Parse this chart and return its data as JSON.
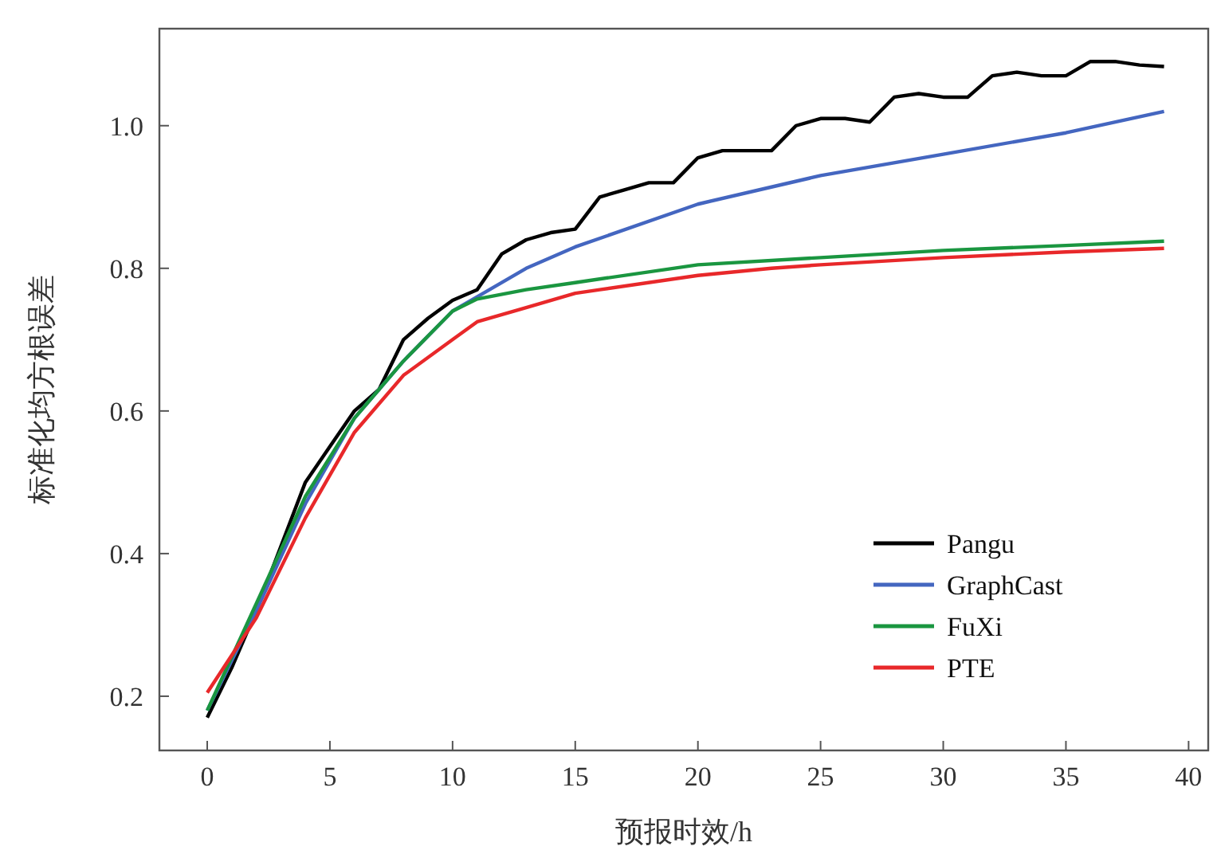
{
  "chart_data": {
    "type": "line",
    "xlabel": "预报时效/h",
    "ylabel": "标准化均方根误差",
    "xlim": [
      -1.95,
      40.8
    ],
    "ylim": [
      0.124,
      1.136
    ],
    "xticks": [
      0,
      5,
      10,
      15,
      20,
      25,
      30,
      35,
      40
    ],
    "yticks": [
      0.2,
      0.4,
      0.6,
      0.8,
      {
        "value": 1,
        "label": "1.0"
      }
    ],
    "legend": "bottom right",
    "grid": false,
    "marker": "none",
    "line_style": "solid",
    "series": [
      {
        "name": "Pangu",
        "color": "#000000",
        "x": [
          0,
          1,
          2,
          3,
          4,
          5,
          6,
          7,
          8,
          9,
          10,
          11,
          12,
          13,
          14,
          15,
          16,
          17,
          18,
          19,
          20,
          21,
          22,
          23,
          24,
          25,
          26,
          27,
          28,
          29,
          30,
          31,
          32,
          33,
          34,
          35,
          36,
          37,
          38,
          39
        ],
        "values": [
          0.17,
          0.24,
          0.32,
          0.41,
          0.5,
          0.55,
          0.6,
          0.63,
          0.7,
          0.73,
          0.755,
          0.77,
          0.82,
          0.84,
          0.85,
          0.855,
          0.9,
          0.91,
          0.92,
          0.92,
          0.955,
          0.965,
          0.965,
          0.965,
          1.0,
          1.01,
          1.01,
          1.005,
          1.04,
          1.045,
          1.04,
          1.04,
          1.07,
          1.075,
          1.07,
          1.07,
          1.09,
          1.09,
          1.085,
          1.083
        ]
      },
      {
        "name": "GraphCast",
        "color": "#4466c0",
        "x": [
          0,
          2,
          4,
          6,
          8,
          10,
          11,
          13,
          15,
          20,
          25,
          30,
          35,
          39
        ],
        "values": [
          0.18,
          0.32,
          0.47,
          0.59,
          0.67,
          0.74,
          0.76,
          0.8,
          0.83,
          0.89,
          0.93,
          0.96,
          0.99,
          1.02
        ]
      },
      {
        "name": "FuXi",
        "color": "#1a9640",
        "x": [
          0,
          2,
          4,
          6,
          8,
          10,
          11,
          13,
          15,
          20,
          25,
          30,
          35,
          39
        ],
        "values": [
          0.18,
          0.33,
          0.48,
          0.59,
          0.67,
          0.74,
          0.757,
          0.77,
          0.78,
          0.805,
          0.815,
          0.825,
          0.832,
          0.838
        ]
      },
      {
        "name": "PTE",
        "color": "#e8282a",
        "x": [
          0,
          2,
          4,
          6,
          8,
          10,
          11,
          13,
          15,
          16,
          20,
          23,
          25,
          30,
          35,
          39
        ],
        "values": [
          0.205,
          0.31,
          0.45,
          0.57,
          0.65,
          0.7,
          0.725,
          0.745,
          0.765,
          0.77,
          0.79,
          0.8,
          0.805,
          0.815,
          0.823,
          0.828
        ]
      }
    ]
  }
}
